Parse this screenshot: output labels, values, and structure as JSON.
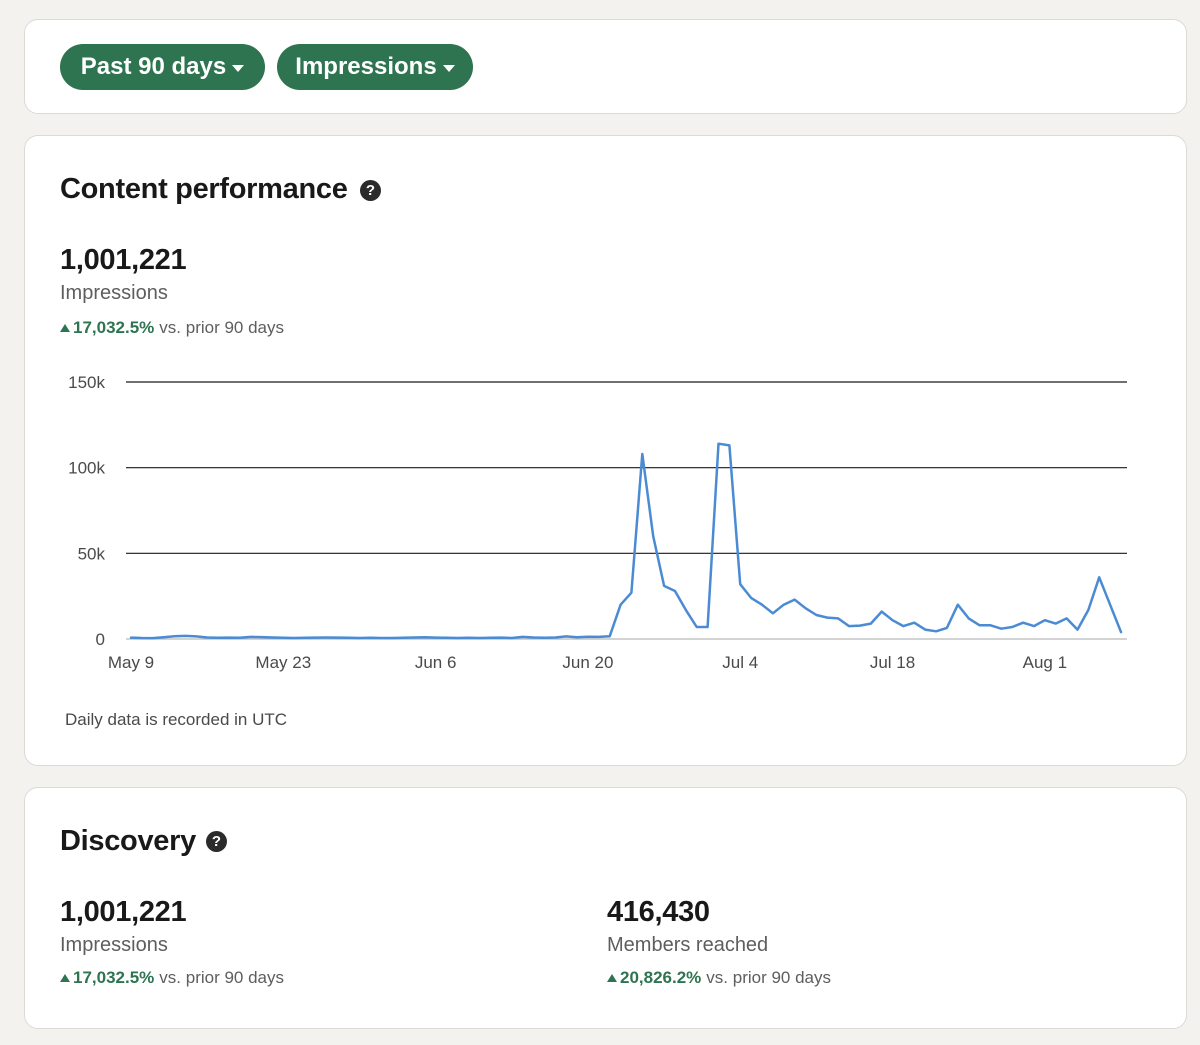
{
  "filters": {
    "range_label": "Past 90 days",
    "metric_label": "Impressions"
  },
  "content_performance": {
    "title": "Content performance",
    "total": "1,001,221",
    "label": "Impressions",
    "change": "17,032.5%",
    "comparison": "vs. prior 90 days",
    "footnote": "Daily data is recorded in UTC"
  },
  "discovery": {
    "title": "Discovery",
    "impressions": {
      "value": "1,001,221",
      "label": "Impressions",
      "change": "17,032.5%",
      "comparison": "vs. prior 90 days"
    },
    "members": {
      "value": "416,430",
      "label": "Members reached",
      "change": "20,826.2%",
      "comparison": "vs. prior 90 days"
    }
  },
  "colors": {
    "accent": "#2e7450",
    "line": "#4a8bd4",
    "grid": "#1a1a1a"
  },
  "chart_data": {
    "type": "line",
    "title": "",
    "xlabel": "",
    "ylabel": "",
    "ylim": [
      0,
      150000
    ],
    "yticks": [
      0,
      50000,
      100000,
      150000
    ],
    "ytick_labels": [
      "0",
      "50k",
      "100k",
      "150k"
    ],
    "xtick_labels": [
      "May 9",
      "May 23",
      "Jun 6",
      "Jun 20",
      "Jul 4",
      "Jul 18",
      "Aug 1"
    ],
    "xtick_days": [
      0,
      14,
      28,
      42,
      56,
      70,
      84
    ],
    "series": [
      {
        "name": "Impressions",
        "values": [
          800,
          600,
          500,
          1000,
          1600,
          1800,
          1500,
          900,
          700,
          800,
          700,
          1200,
          1100,
          900,
          700,
          600,
          700,
          800,
          900,
          800,
          700,
          600,
          700,
          600,
          600,
          700,
          900,
          1000,
          800,
          700,
          600,
          700,
          600,
          700,
          800,
          600,
          1200,
          900,
          700,
          900,
          1500,
          1000,
          1300,
          1200,
          1600,
          20000,
          27000,
          108000,
          60000,
          31000,
          28000,
          17000,
          7000,
          7000,
          114000,
          113000,
          32000,
          24000,
          20000,
          15000,
          20000,
          23000,
          18000,
          14000,
          12500,
          12000,
          7500,
          7800,
          9000,
          16000,
          11000,
          7500,
          9500,
          5500,
          4500,
          6500,
          20000,
          12000,
          8000,
          8000,
          6000,
          7000,
          9500,
          7500,
          11000,
          9000,
          12000,
          5500,
          17000,
          36000,
          20000,
          4000
        ]
      }
    ]
  }
}
